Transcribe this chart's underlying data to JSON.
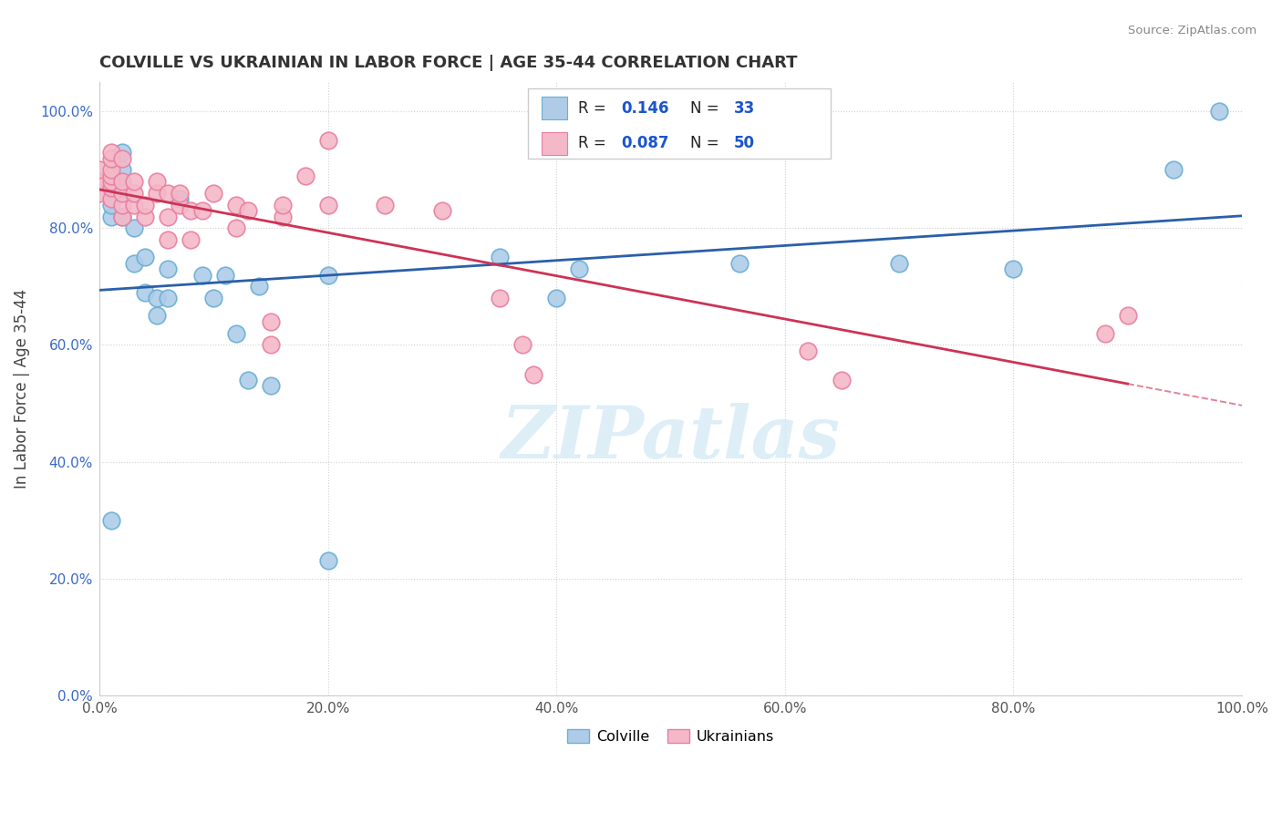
{
  "title": "COLVILLE VS UKRAINIAN IN LABOR FORCE | AGE 35-44 CORRELATION CHART",
  "source": "Source: ZipAtlas.com",
  "ylabel": "In Labor Force | Age 35-44",
  "xlim": [
    0.0,
    1.0
  ],
  "ylim": [
    0.0,
    1.05
  ],
  "xticks": [
    0.0,
    0.2,
    0.4,
    0.6,
    0.8,
    1.0
  ],
  "yticks": [
    0.0,
    0.2,
    0.4,
    0.6,
    0.8,
    1.0
  ],
  "xticklabels": [
    "0.0%",
    "20.0%",
    "40.0%",
    "60.0%",
    "80.0%",
    "100.0%"
  ],
  "yticklabels": [
    "0.0%",
    "20.0%",
    "40.0%",
    "60.0%",
    "80.0%",
    "100.0%"
  ],
  "colville_color": "#aecce8",
  "ukrainian_color": "#f4b8c8",
  "colville_edge_color": "#6aaed6",
  "ukrainian_edge_color": "#e87fa0",
  "trend_colville_color": "#2a5faa",
  "trend_ukrainian_color": "#cc3355",
  "R_colville": 0.146,
  "N_colville": 33,
  "R_ukrainian": 0.087,
  "N_ukrainian": 50,
  "legend_R_color": "#1a55cc",
  "watermark_color": "#d0e8f5",
  "colville_x": [
    0.01,
    0.01,
    0.01,
    0.02,
    0.02,
    0.02,
    0.02,
    0.03,
    0.03,
    0.04,
    0.04,
    0.05,
    0.05,
    0.06,
    0.06,
    0.07,
    0.09,
    0.1,
    0.11,
    0.12,
    0.13,
    0.14,
    0.15,
    0.2,
    0.2,
    0.35,
    0.4,
    0.42,
    0.56,
    0.7,
    0.8,
    0.94,
    0.98
  ],
  "colville_y": [
    0.3,
    0.82,
    0.84,
    0.82,
    0.87,
    0.9,
    0.93,
    0.74,
    0.8,
    0.69,
    0.75,
    0.65,
    0.68,
    0.68,
    0.73,
    0.85,
    0.72,
    0.68,
    0.72,
    0.62,
    0.54,
    0.7,
    0.53,
    0.23,
    0.72,
    0.75,
    0.68,
    0.73,
    0.74,
    0.74,
    0.73,
    0.9,
    1.0
  ],
  "ukrainian_x": [
    0.0,
    0.0,
    0.0,
    0.01,
    0.01,
    0.01,
    0.01,
    0.01,
    0.01,
    0.01,
    0.02,
    0.02,
    0.02,
    0.02,
    0.02,
    0.03,
    0.03,
    0.03,
    0.04,
    0.04,
    0.05,
    0.05,
    0.06,
    0.06,
    0.06,
    0.07,
    0.07,
    0.08,
    0.08,
    0.09,
    0.1,
    0.12,
    0.12,
    0.13,
    0.15,
    0.15,
    0.16,
    0.16,
    0.18,
    0.2,
    0.2,
    0.25,
    0.3,
    0.35,
    0.37,
    0.38,
    0.62,
    0.65,
    0.88,
    0.9
  ],
  "ukrainian_y": [
    0.86,
    0.88,
    0.9,
    0.85,
    0.87,
    0.88,
    0.89,
    0.9,
    0.92,
    0.93,
    0.82,
    0.84,
    0.86,
    0.88,
    0.92,
    0.84,
    0.86,
    0.88,
    0.82,
    0.84,
    0.86,
    0.88,
    0.78,
    0.82,
    0.86,
    0.84,
    0.86,
    0.78,
    0.83,
    0.83,
    0.86,
    0.8,
    0.84,
    0.83,
    0.6,
    0.64,
    0.82,
    0.84,
    0.89,
    0.84,
    0.95,
    0.84,
    0.83,
    0.68,
    0.6,
    0.55,
    0.59,
    0.54,
    0.62,
    0.65
  ],
  "background_color": "#ffffff",
  "grid_color": "#cccccc"
}
